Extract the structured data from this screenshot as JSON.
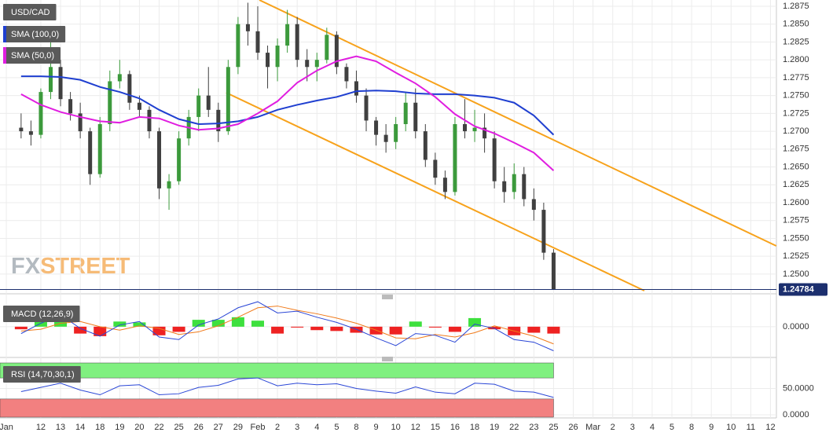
{
  "chart_data": [
    {
      "type": "candlestick",
      "title": "USD/CAD",
      "watermark": [
        "FX",
        "STREET"
      ],
      "x": [
        -1,
        -0.5,
        0,
        0.5,
        1,
        1.5,
        2,
        2.5,
        3,
        3.5,
        4,
        4.5,
        5,
        5.5,
        6,
        6.5,
        7,
        7.5,
        8,
        8.5,
        9,
        9.5,
        10,
        10.5,
        11,
        11.5,
        12,
        12.5,
        13,
        13.5,
        14,
        14.5,
        15,
        15.5,
        16,
        16.5,
        17,
        17.5,
        18,
        18.5,
        19,
        19.5,
        20,
        20.5,
        21,
        21.5,
        22,
        22.5,
        23,
        23.5,
        24,
        24.5,
        25,
        25.5,
        26
      ],
      "open": [
        1.2705,
        1.27,
        1.2695,
        1.2755,
        1.279,
        1.2745,
        1.2725,
        1.27,
        1.264,
        1.271,
        1.277,
        1.278,
        1.274,
        1.273,
        1.27,
        1.262,
        1.263,
        1.269,
        1.272,
        1.275,
        1.273,
        1.27,
        1.279,
        1.285,
        1.284,
        1.281,
        1.279,
        1.282,
        1.285,
        1.28,
        1.279,
        1.28,
        1.2835,
        1.279,
        1.277,
        1.275,
        1.2715,
        1.2695,
        1.2685,
        1.271,
        1.274,
        1.27,
        1.266,
        1.2635,
        1.2615,
        1.271,
        1.27,
        1.2705,
        1.269,
        1.263,
        1.2615,
        1.264,
        1.2605,
        1.259,
        1.253
      ],
      "high": [
        1.2725,
        1.2715,
        1.276,
        1.283,
        1.28,
        1.2755,
        1.274,
        1.2705,
        1.272,
        1.2785,
        1.28,
        1.2785,
        1.275,
        1.2735,
        1.2705,
        1.264,
        1.27,
        1.273,
        1.276,
        1.279,
        1.274,
        1.28,
        1.286,
        1.288,
        1.2875,
        1.282,
        1.283,
        1.287,
        1.286,
        1.2815,
        1.281,
        1.2845,
        1.284,
        1.2795,
        1.2785,
        1.276,
        1.272,
        1.271,
        1.272,
        1.2755,
        1.276,
        1.271,
        1.267,
        1.2645,
        1.272,
        1.2745,
        1.273,
        1.2725,
        1.27,
        1.265,
        1.2655,
        1.265,
        1.262,
        1.26,
        1.2535
      ],
      "low": [
        1.269,
        1.268,
        1.269,
        1.2745,
        1.2735,
        1.2715,
        1.269,
        1.2625,
        1.2635,
        1.27,
        1.276,
        1.273,
        1.272,
        1.269,
        1.2605,
        1.259,
        1.2625,
        1.268,
        1.27,
        1.272,
        1.2685,
        1.2695,
        1.278,
        1.282,
        1.28,
        1.276,
        1.277,
        1.281,
        1.279,
        1.277,
        1.277,
        1.2795,
        1.278,
        1.276,
        1.274,
        1.27,
        1.268,
        1.267,
        1.2675,
        1.27,
        1.269,
        1.265,
        1.2625,
        1.2605,
        1.261,
        1.269,
        1.2685,
        1.267,
        1.262,
        1.26,
        1.2605,
        1.2595,
        1.2575,
        1.252,
        1.24784
      ],
      "close": [
        1.27,
        1.2695,
        1.2755,
        1.279,
        1.2745,
        1.2725,
        1.27,
        1.264,
        1.271,
        1.277,
        1.278,
        1.274,
        1.273,
        1.27,
        1.262,
        1.263,
        1.269,
        1.272,
        1.275,
        1.273,
        1.27,
        1.279,
        1.285,
        1.284,
        1.281,
        1.279,
        1.282,
        1.285,
        1.28,
        1.279,
        1.28,
        1.2835,
        1.279,
        1.277,
        1.275,
        1.2715,
        1.2695,
        1.2685,
        1.271,
        1.274,
        1.27,
        1.266,
        1.2635,
        1.2615,
        1.271,
        1.27,
        1.2705,
        1.269,
        1.263,
        1.2615,
        1.264,
        1.2605,
        1.259,
        1.253,
        1.24784
      ],
      "up_color": "#3c9a3c",
      "down_color": "#404040",
      "overlays": [
        {
          "name": "SMA (100,0)",
          "color": "#1f3fd0",
          "x": [
            -1,
            0,
            1,
            2,
            3,
            4,
            5,
            6,
            7,
            8,
            9,
            10,
            11,
            12,
            13,
            14,
            15,
            16,
            17,
            18,
            19,
            20,
            21,
            22,
            23,
            24,
            25,
            26
          ],
          "values": [
            1.2777,
            1.2777,
            1.2776,
            1.2772,
            1.2762,
            1.2755,
            1.2746,
            1.273,
            1.2717,
            1.271,
            1.2711,
            1.2714,
            1.272,
            1.273,
            1.2737,
            1.2743,
            1.2748,
            1.2756,
            1.2757,
            1.2756,
            1.2753,
            1.2752,
            1.2752,
            1.275,
            1.2747,
            1.274,
            1.2722,
            1.2695
          ]
        },
        {
          "name": "SMA (50,0)",
          "color": "#e01ee0",
          "x": [
            -1,
            0,
            1,
            2,
            3,
            4,
            5,
            6,
            7,
            8,
            9,
            10,
            11,
            12,
            13,
            14,
            15,
            16,
            17,
            18,
            19,
            20,
            21,
            22,
            23,
            24,
            25,
            26
          ],
          "values": [
            1.2752,
            1.2737,
            1.2727,
            1.272,
            1.2714,
            1.2712,
            1.272,
            1.2718,
            1.2708,
            1.2702,
            1.2704,
            1.271,
            1.2725,
            1.2742,
            1.2768,
            1.2785,
            1.2798,
            1.2805,
            1.2798,
            1.2782,
            1.2767,
            1.2748,
            1.2724,
            1.2707,
            1.2697,
            1.2684,
            1.267,
            1.2645
          ]
        }
      ],
      "trendlines": [
        {
          "color": "#f7a21b",
          "x": [
            11.08,
            37.29
          ],
          "values": [
            1.28838,
            1.25395
          ]
        },
        {
          "color": "#f7a21b",
          "x": [
            9.4,
            30.6
          ],
          "values": [
            1.2754,
            1.24768
          ]
        }
      ],
      "last_price": 1.24784,
      "last_price_color": "#1c2f6e",
      "xlim": [
        -2.07,
        37.3
      ],
      "xticks": [
        {
          "value": -1.75,
          "label": "Jan"
        },
        {
          "value": 0,
          "label": "12"
        },
        {
          "value": 1,
          "label": "13"
        },
        {
          "value": 2,
          "label": "14"
        },
        {
          "value": 3,
          "label": "18"
        },
        {
          "value": 4,
          "label": "19"
        },
        {
          "value": 5,
          "label": "20"
        },
        {
          "value": 6,
          "label": "22"
        },
        {
          "value": 7,
          "label": "25"
        },
        {
          "value": 8,
          "label": "26"
        },
        {
          "value": 9,
          "label": "27"
        },
        {
          "value": 10,
          "label": "29"
        },
        {
          "value": 11,
          "label": "Feb"
        },
        {
          "value": 12,
          "label": "2"
        },
        {
          "value": 13,
          "label": "3"
        },
        {
          "value": 14,
          "label": "4"
        },
        {
          "value": 15,
          "label": "5"
        },
        {
          "value": 16,
          "label": "8"
        },
        {
          "value": 17,
          "label": "9"
        },
        {
          "value": 18,
          "label": "10"
        },
        {
          "value": 19,
          "label": "12"
        },
        {
          "value": 20,
          "label": "15"
        },
        {
          "value": 21,
          "label": "16"
        },
        {
          "value": 22,
          "label": "18"
        },
        {
          "value": 23,
          "label": "19"
        },
        {
          "value": 24,
          "label": "22"
        },
        {
          "value": 25,
          "label": "23"
        },
        {
          "value": 26,
          "label": "25"
        },
        {
          "value": 27,
          "label": "26"
        },
        {
          "value": 28,
          "label": "Mar"
        },
        {
          "value": 29,
          "label": "2"
        },
        {
          "value": 30,
          "label": "3"
        },
        {
          "value": 31,
          "label": "4"
        },
        {
          "value": 32,
          "label": "5"
        },
        {
          "value": 33,
          "label": "8"
        },
        {
          "value": 34,
          "label": "9"
        },
        {
          "value": 35,
          "label": "10"
        },
        {
          "value": 36,
          "label": "11"
        },
        {
          "value": 37,
          "label": "12"
        }
      ],
      "ylim": [
        1.24746,
        1.28838
      ],
      "yticks": [
        {
          "value": 1.25,
          "label": "1.2500"
        },
        1.2525,
        {
          "value": 1.255,
          "label": "1.2550"
        },
        1.2575,
        {
          "value": 1.26,
          "label": "1.2600"
        },
        1.2625,
        {
          "value": 1.265,
          "label": "1.2650"
        },
        1.2675,
        {
          "value": 1.27,
          "label": "1.2700"
        },
        1.2725,
        {
          "value": 1.275,
          "label": "1.2750"
        },
        1.2775,
        {
          "value": 1.28,
          "label": "1.2800"
        },
        1.2825,
        {
          "value": 1.285,
          "label": "1.2850"
        },
        1.2875
      ],
      "grid": true
    },
    {
      "type": "macd",
      "title": "MACD (12,26,9)",
      "x": [
        -1,
        0,
        1,
        2,
        3,
        4,
        5,
        6,
        7,
        8,
        9,
        10,
        11,
        12,
        13,
        14,
        15,
        16,
        17,
        18,
        19,
        20,
        21,
        22,
        23,
        24,
        25,
        26
      ],
      "macd_line": {
        "color": "#2a46d6",
        "values": [
          -0.0008,
          0.0004,
          0.0014,
          -0.0002,
          -0.0011,
          0.0002,
          0.0006,
          -0.0012,
          -0.0015,
          0.0002,
          0.0009,
          0.0022,
          0.0029,
          0.0016,
          0.0018,
          0.0011,
          0.0005,
          -0.0003,
          -0.0013,
          -0.0022,
          -0.0008,
          -0.001,
          -0.0018,
          0.0003,
          -0.0002,
          -0.0015,
          -0.0018,
          -0.0028
        ]
      },
      "signal_line": {
        "color": "#f07a1a",
        "values": [
          -0.0005,
          -0.0003,
          0.0004,
          0.0006,
          0.0,
          -0.0004,
          0.0001,
          -0.0002,
          -0.0009,
          -0.0006,
          0.0001,
          0.0011,
          0.0022,
          0.0024,
          0.0019,
          0.0015,
          0.001,
          0.0004,
          -0.0004,
          -0.0013,
          -0.0014,
          -0.0009,
          -0.0012,
          -0.0007,
          0.0001,
          -0.0005,
          -0.0011,
          -0.002
        ]
      },
      "histogram": {
        "up_color": "#3ee03e",
        "down_color": "#ee2222",
        "values": [
          -0.0003,
          0.0007,
          0.001,
          -0.0008,
          -0.0011,
          0.0006,
          0.0005,
          -0.001,
          -0.0006,
          0.0008,
          0.0008,
          0.0011,
          0.0007,
          -0.0008,
          -0.0001,
          -0.0004,
          -0.0005,
          -0.0007,
          -0.0009,
          -0.0009,
          0.0006,
          -0.0001,
          -0.0006,
          0.001,
          -0.0003,
          -0.001,
          -0.0007,
          -0.0008
        ]
      },
      "ylim": [
        -0.0033,
        0.003
      ],
      "yticks": [
        {
          "value": 0,
          "label": "0.0000"
        }
      ]
    },
    {
      "type": "rsi",
      "title": "RSI (14,70,30,1)",
      "x": [
        -1,
        0,
        1,
        2,
        3,
        4,
        5,
        6,
        7,
        8,
        9,
        10,
        11,
        12,
        13,
        14,
        15,
        16,
        17,
        18,
        19,
        20,
        21,
        22,
        23,
        24,
        25,
        26
      ],
      "values": [
        44,
        52,
        60,
        47,
        38,
        55,
        57,
        38,
        40,
        52,
        56,
        68,
        70,
        55,
        60,
        57,
        59,
        50,
        45,
        41,
        53,
        43,
        40,
        60,
        58,
        45,
        43,
        33
      ],
      "color": "#2a46d6",
      "overbought": 70,
      "oversold": 30,
      "overbought_color": "#80f080",
      "oversold_color": "#f28080",
      "ylim": [
        -4.5,
        98.5
      ],
      "yticks": [
        {
          "value": 0,
          "label": "0.0000"
        },
        {
          "value": 50,
          "label": "50.0000"
        }
      ]
    }
  ]
}
